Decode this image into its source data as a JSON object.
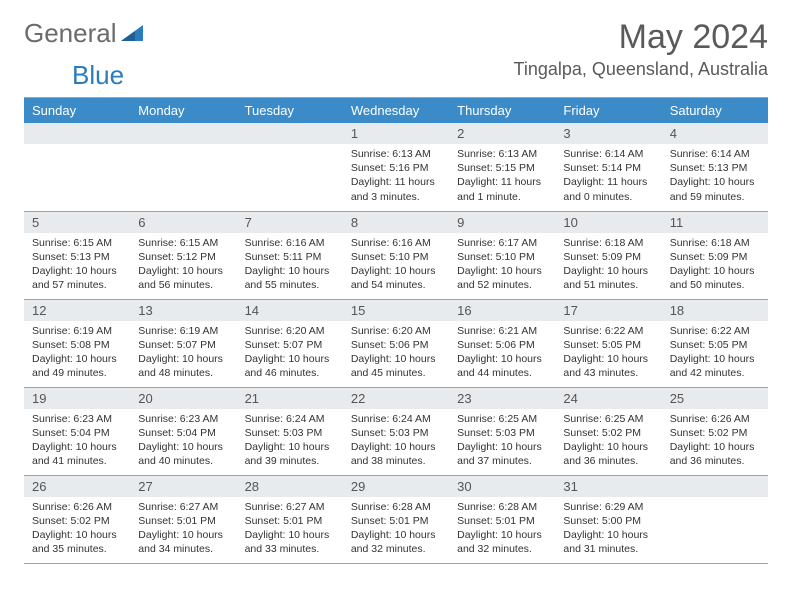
{
  "brand": {
    "part1": "General",
    "part2": "Blue"
  },
  "title": "May 2024",
  "location": "Tingalpa, Queensland, Australia",
  "colors": {
    "header_bg": "#3b8bc9",
    "header_text": "#ffffff",
    "daynum_bg": "#e7ebee",
    "text": "#333333",
    "border": "#9aa4ad",
    "brand_gray": "#6b6b6b",
    "brand_blue": "#2b7bbf"
  },
  "weekdays": [
    "Sunday",
    "Monday",
    "Tuesday",
    "Wednesday",
    "Thursday",
    "Friday",
    "Saturday"
  ],
  "weeks": [
    [
      null,
      null,
      null,
      {
        "n": "1",
        "sr": "Sunrise: 6:13 AM",
        "ss": "Sunset: 5:16 PM",
        "d1": "Daylight: 11 hours",
        "d2": "and 3 minutes."
      },
      {
        "n": "2",
        "sr": "Sunrise: 6:13 AM",
        "ss": "Sunset: 5:15 PM",
        "d1": "Daylight: 11 hours",
        "d2": "and 1 minute."
      },
      {
        "n": "3",
        "sr": "Sunrise: 6:14 AM",
        "ss": "Sunset: 5:14 PM",
        "d1": "Daylight: 11 hours",
        "d2": "and 0 minutes."
      },
      {
        "n": "4",
        "sr": "Sunrise: 6:14 AM",
        "ss": "Sunset: 5:13 PM",
        "d1": "Daylight: 10 hours",
        "d2": "and 59 minutes."
      }
    ],
    [
      {
        "n": "5",
        "sr": "Sunrise: 6:15 AM",
        "ss": "Sunset: 5:13 PM",
        "d1": "Daylight: 10 hours",
        "d2": "and 57 minutes."
      },
      {
        "n": "6",
        "sr": "Sunrise: 6:15 AM",
        "ss": "Sunset: 5:12 PM",
        "d1": "Daylight: 10 hours",
        "d2": "and 56 minutes."
      },
      {
        "n": "7",
        "sr": "Sunrise: 6:16 AM",
        "ss": "Sunset: 5:11 PM",
        "d1": "Daylight: 10 hours",
        "d2": "and 55 minutes."
      },
      {
        "n": "8",
        "sr": "Sunrise: 6:16 AM",
        "ss": "Sunset: 5:10 PM",
        "d1": "Daylight: 10 hours",
        "d2": "and 54 minutes."
      },
      {
        "n": "9",
        "sr": "Sunrise: 6:17 AM",
        "ss": "Sunset: 5:10 PM",
        "d1": "Daylight: 10 hours",
        "d2": "and 52 minutes."
      },
      {
        "n": "10",
        "sr": "Sunrise: 6:18 AM",
        "ss": "Sunset: 5:09 PM",
        "d1": "Daylight: 10 hours",
        "d2": "and 51 minutes."
      },
      {
        "n": "11",
        "sr": "Sunrise: 6:18 AM",
        "ss": "Sunset: 5:09 PM",
        "d1": "Daylight: 10 hours",
        "d2": "and 50 minutes."
      }
    ],
    [
      {
        "n": "12",
        "sr": "Sunrise: 6:19 AM",
        "ss": "Sunset: 5:08 PM",
        "d1": "Daylight: 10 hours",
        "d2": "and 49 minutes."
      },
      {
        "n": "13",
        "sr": "Sunrise: 6:19 AM",
        "ss": "Sunset: 5:07 PM",
        "d1": "Daylight: 10 hours",
        "d2": "and 48 minutes."
      },
      {
        "n": "14",
        "sr": "Sunrise: 6:20 AM",
        "ss": "Sunset: 5:07 PM",
        "d1": "Daylight: 10 hours",
        "d2": "and 46 minutes."
      },
      {
        "n": "15",
        "sr": "Sunrise: 6:20 AM",
        "ss": "Sunset: 5:06 PM",
        "d1": "Daylight: 10 hours",
        "d2": "and 45 minutes."
      },
      {
        "n": "16",
        "sr": "Sunrise: 6:21 AM",
        "ss": "Sunset: 5:06 PM",
        "d1": "Daylight: 10 hours",
        "d2": "and 44 minutes."
      },
      {
        "n": "17",
        "sr": "Sunrise: 6:22 AM",
        "ss": "Sunset: 5:05 PM",
        "d1": "Daylight: 10 hours",
        "d2": "and 43 minutes."
      },
      {
        "n": "18",
        "sr": "Sunrise: 6:22 AM",
        "ss": "Sunset: 5:05 PM",
        "d1": "Daylight: 10 hours",
        "d2": "and 42 minutes."
      }
    ],
    [
      {
        "n": "19",
        "sr": "Sunrise: 6:23 AM",
        "ss": "Sunset: 5:04 PM",
        "d1": "Daylight: 10 hours",
        "d2": "and 41 minutes."
      },
      {
        "n": "20",
        "sr": "Sunrise: 6:23 AM",
        "ss": "Sunset: 5:04 PM",
        "d1": "Daylight: 10 hours",
        "d2": "and 40 minutes."
      },
      {
        "n": "21",
        "sr": "Sunrise: 6:24 AM",
        "ss": "Sunset: 5:03 PM",
        "d1": "Daylight: 10 hours",
        "d2": "and 39 minutes."
      },
      {
        "n": "22",
        "sr": "Sunrise: 6:24 AM",
        "ss": "Sunset: 5:03 PM",
        "d1": "Daylight: 10 hours",
        "d2": "and 38 minutes."
      },
      {
        "n": "23",
        "sr": "Sunrise: 6:25 AM",
        "ss": "Sunset: 5:03 PM",
        "d1": "Daylight: 10 hours",
        "d2": "and 37 minutes."
      },
      {
        "n": "24",
        "sr": "Sunrise: 6:25 AM",
        "ss": "Sunset: 5:02 PM",
        "d1": "Daylight: 10 hours",
        "d2": "and 36 minutes."
      },
      {
        "n": "25",
        "sr": "Sunrise: 6:26 AM",
        "ss": "Sunset: 5:02 PM",
        "d1": "Daylight: 10 hours",
        "d2": "and 36 minutes."
      }
    ],
    [
      {
        "n": "26",
        "sr": "Sunrise: 6:26 AM",
        "ss": "Sunset: 5:02 PM",
        "d1": "Daylight: 10 hours",
        "d2": "and 35 minutes."
      },
      {
        "n": "27",
        "sr": "Sunrise: 6:27 AM",
        "ss": "Sunset: 5:01 PM",
        "d1": "Daylight: 10 hours",
        "d2": "and 34 minutes."
      },
      {
        "n": "28",
        "sr": "Sunrise: 6:27 AM",
        "ss": "Sunset: 5:01 PM",
        "d1": "Daylight: 10 hours",
        "d2": "and 33 minutes."
      },
      {
        "n": "29",
        "sr": "Sunrise: 6:28 AM",
        "ss": "Sunset: 5:01 PM",
        "d1": "Daylight: 10 hours",
        "d2": "and 32 minutes."
      },
      {
        "n": "30",
        "sr": "Sunrise: 6:28 AM",
        "ss": "Sunset: 5:01 PM",
        "d1": "Daylight: 10 hours",
        "d2": "and 32 minutes."
      },
      {
        "n": "31",
        "sr": "Sunrise: 6:29 AM",
        "ss": "Sunset: 5:00 PM",
        "d1": "Daylight: 10 hours",
        "d2": "and 31 minutes."
      },
      null
    ]
  ]
}
